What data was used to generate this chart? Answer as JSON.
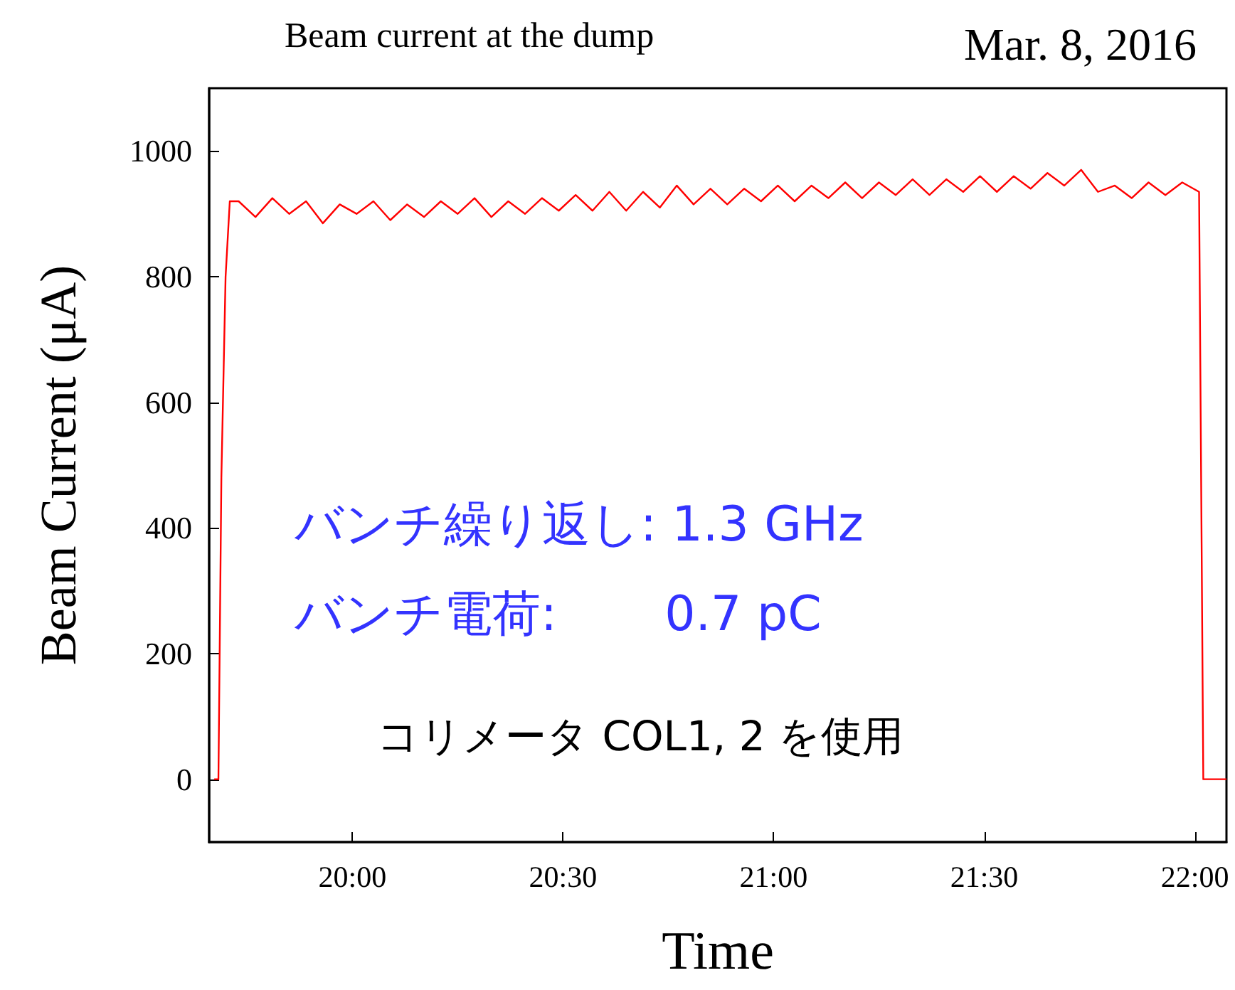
{
  "chart_data": {
    "type": "line",
    "title": "Beam current at the dump",
    "subtitle": "Mar. 8, 2016",
    "xlabel": "Time",
    "ylabel": "Beam Current (μA)",
    "xlim": [
      19.66,
      22.075
    ],
    "ylim": [
      -100,
      1100
    ],
    "xticks": [
      {
        "value": 20,
        "label": "20:00"
      },
      {
        "value": 20.5,
        "label": "20:30"
      },
      {
        "value": 21,
        "label": "21:00"
      },
      {
        "value": 21.5,
        "label": "21:30"
      },
      {
        "value": 22,
        "label": "22:00"
      }
    ],
    "yticks": [
      0,
      200,
      400,
      600,
      800,
      1000
    ],
    "grid": false,
    "annotations": [
      "バンチ繰り返し: 1.3 GHz",
      "バンチ電荷:       0.7 pC",
      "コリメータ COL1, 2 を使用"
    ],
    "series": [
      {
        "color": "#ff0000",
        "x": [
          19.672,
          19.682,
          19.689,
          19.699,
          19.709,
          19.73,
          19.77,
          19.81,
          19.85,
          19.89,
          19.93,
          19.97,
          20.01,
          20.05,
          20.09,
          20.13,
          20.17,
          20.21,
          20.25,
          20.29,
          20.33,
          20.37,
          20.41,
          20.45,
          20.49,
          20.53,
          20.57,
          20.61,
          20.65,
          20.69,
          20.73,
          20.77,
          20.81,
          20.85,
          20.89,
          20.93,
          20.97,
          21.01,
          21.05,
          21.09,
          21.13,
          21.17,
          21.21,
          21.25,
          21.29,
          21.33,
          21.37,
          21.41,
          21.45,
          21.49,
          21.53,
          21.57,
          21.61,
          21.65,
          21.69,
          21.73,
          21.77,
          21.81,
          21.85,
          21.89,
          21.93,
          21.97,
          22.01,
          22.02,
          22.075
        ],
        "values": [
          0,
          0,
          480,
          800,
          920,
          920,
          895,
          925,
          900,
          920,
          885,
          915,
          900,
          920,
          890,
          915,
          895,
          920,
          900,
          925,
          895,
          920,
          900,
          925,
          905,
          930,
          905,
          935,
          905,
          935,
          910,
          945,
          915,
          940,
          915,
          940,
          920,
          945,
          920,
          945,
          925,
          950,
          925,
          950,
          930,
          955,
          930,
          955,
          935,
          960,
          935,
          960,
          940,
          965,
          945,
          970,
          935,
          945,
          925,
          950,
          930,
          950,
          935,
          0,
          0
        ]
      }
    ]
  }
}
